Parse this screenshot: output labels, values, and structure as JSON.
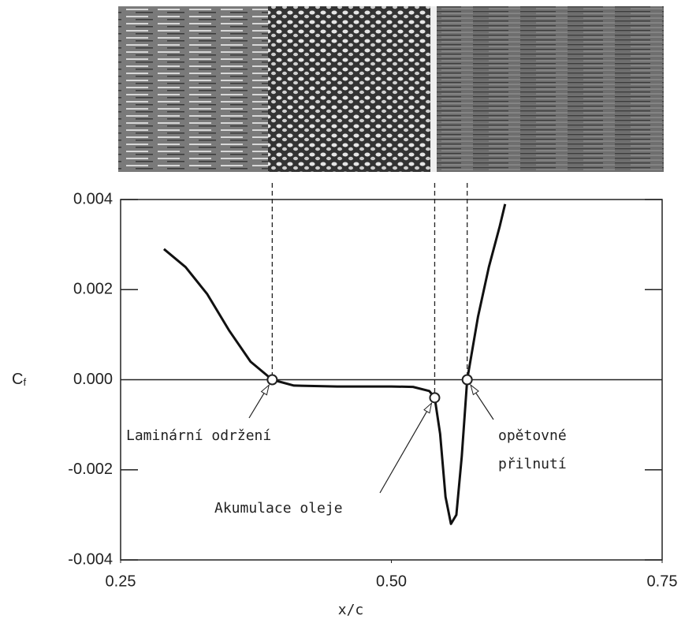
{
  "chart_data": {
    "type": "line",
    "xlabel": "x/c",
    "ylabel": {
      "symbol": "C",
      "subscript": "f"
    },
    "xlim": [
      0.25,
      0.75
    ],
    "xticks": [
      0.25,
      {
        "value": 0.5,
        "label": "0.50"
      },
      0.75
    ],
    "ylim": [
      -0.004,
      0.004
    ],
    "yticks": [
      0.004,
      0.002,
      {
        "value": 0,
        "label": "0.000"
      },
      -0.002,
      -0.004
    ],
    "series": [
      {
        "color": "#111111",
        "x": [
          0.29,
          0.31,
          0.33,
          0.35,
          0.37,
          0.39,
          0.41,
          0.45,
          0.5,
          0.52,
          0.535,
          0.54,
          0.545,
          0.55,
          0.555,
          0.56,
          0.565,
          0.57,
          0.58,
          0.59,
          0.6,
          0.605
        ],
        "values": [
          0.0029,
          0.0025,
          0.0019,
          0.0011,
          0.0004,
          0,
          -0.00013,
          -0.00015,
          -0.00015,
          -0.00016,
          -0.00025,
          -0.0004,
          -0.0012,
          -0.0026,
          -0.0032,
          -0.003,
          -0.0017,
          0,
          0.0014,
          0.0025,
          0.0034,
          0.0039
        ]
      }
    ],
    "annotations": [
      {
        "x": 0.39,
        "y": 0,
        "lines": [
          "Laminární održení"
        ]
      },
      {
        "x": 0.54,
        "y": -0.0004,
        "lines": [
          "Akumulace oleje"
        ]
      },
      {
        "x": 0.57,
        "y": 0,
        "lines": [
          "opětovné",
          "přilnutí"
        ]
      }
    ]
  }
}
